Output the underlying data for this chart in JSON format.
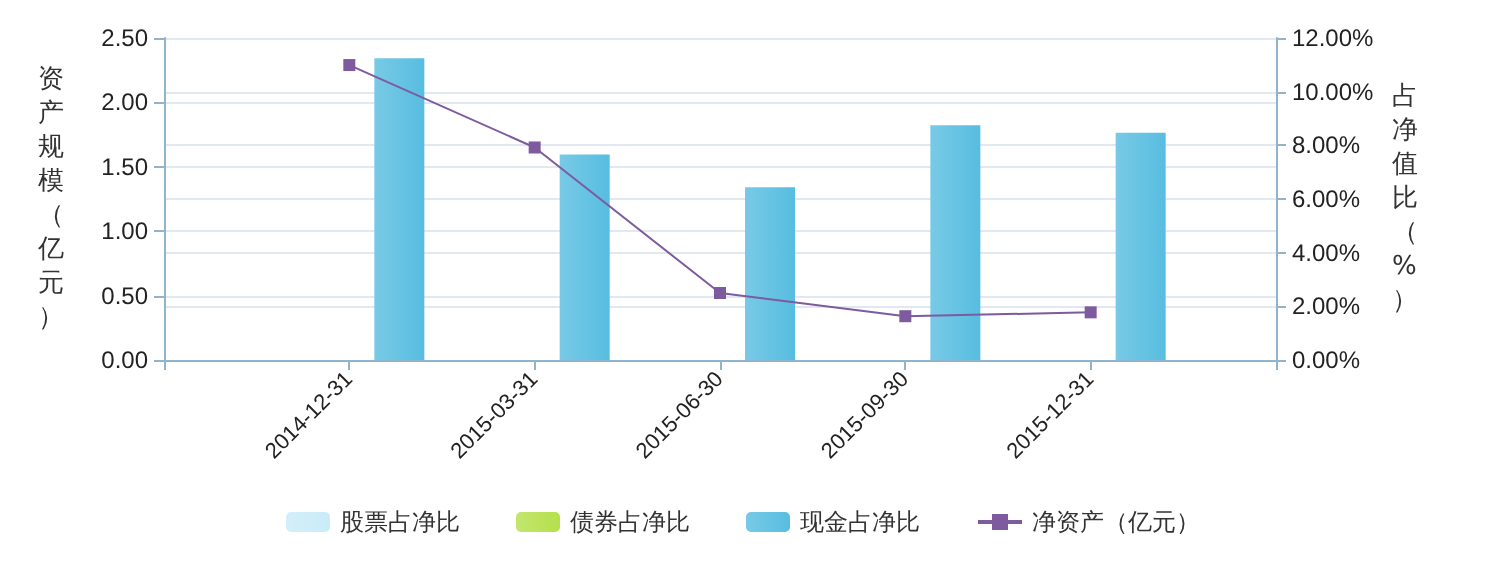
{
  "chart_data": {
    "type": "bar",
    "categories": [
      null,
      "2014-12-31",
      "2015-03-31",
      "2015-06-30",
      "2015-09-30",
      "2015-12-31",
      null
    ],
    "ylabel": "资产规模（亿元）",
    "y2label": "占净值比（%）",
    "series": [
      {
        "name": "股票占净比",
        "color": "#c9ecf8",
        "axis": "y2",
        "values": [
          null,
          null,
          null,
          null,
          null,
          null,
          null
        ]
      },
      {
        "name": "债券占净比",
        "color": "#b5e04a",
        "axis": "y2",
        "values": [
          null,
          null,
          null,
          null,
          null,
          null,
          null
        ]
      },
      {
        "name": "现金占净比",
        "color": "#57bde0",
        "axis": "y2",
        "values": [
          null,
          11.25,
          7.66,
          6.44,
          8.75,
          8.47,
          null
        ]
      },
      {
        "name": "净资产（亿元）",
        "type": "line",
        "color": "#7e5a9e",
        "values": [
          null,
          2.29,
          1.65,
          0.52,
          0.34,
          0.37,
          null
        ]
      }
    ],
    "ylim": [
      0,
      2.5
    ],
    "yticks": [
      {
        "value": 0,
        "label": "0.00"
      },
      {
        "value": 0.5,
        "label": "0.50"
      },
      {
        "value": 1,
        "label": "1.00"
      },
      {
        "value": 1.5,
        "label": "1.50"
      },
      {
        "value": 2,
        "label": "2.00"
      },
      {
        "value": 2.5,
        "label": "2.50"
      }
    ],
    "y2lim": [
      0,
      12
    ],
    "y2ticks": [
      {
        "value": 0,
        "label": "0.00%"
      },
      {
        "value": 2,
        "label": "2.00%"
      },
      {
        "value": 4,
        "label": "4.00%"
      },
      {
        "value": 6,
        "label": "6.00%"
      },
      {
        "value": 8,
        "label": "8.00%"
      },
      {
        "value": 10,
        "label": "10.00%"
      },
      {
        "value": 12,
        "label": "12.00%"
      }
    ],
    "grid": "y",
    "legend": "bottom",
    "marker": "square"
  }
}
